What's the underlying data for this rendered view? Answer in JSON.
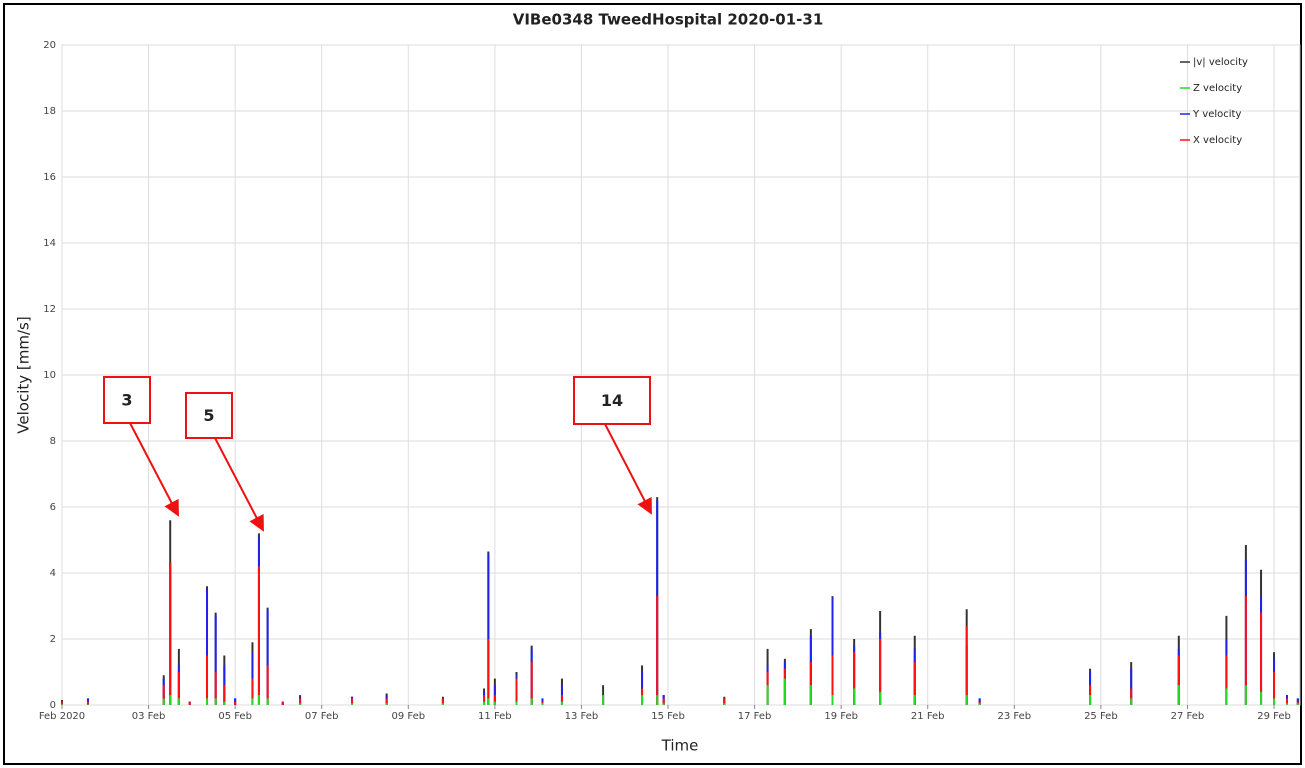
{
  "chart_data": {
    "type": "stem",
    "title": "VIBe0348 TweedHospital 2020-01-31",
    "x_label": "Time",
    "y_label": "Velocity [mm/s]",
    "xlim": [
      1,
      29.6
    ],
    "ylim": [
      0,
      20
    ],
    "yticks": [
      0,
      2,
      4,
      6,
      8,
      10,
      12,
      14,
      16,
      18,
      20
    ],
    "xticks": [
      {
        "value": 1,
        "label": "Feb 2020"
      },
      {
        "value": 3,
        "label": "03 Feb"
      },
      {
        "value": 5,
        "label": "05 Feb"
      },
      {
        "value": 7,
        "label": "07 Feb"
      },
      {
        "value": 9,
        "label": "09 Feb"
      },
      {
        "value": 11,
        "label": "11 Feb"
      },
      {
        "value": 13,
        "label": "13 Feb"
      },
      {
        "value": 15,
        "label": "15 Feb"
      },
      {
        "value": 17,
        "label": "17 Feb"
      },
      {
        "value": 19,
        "label": "19 Feb"
      },
      {
        "value": 21,
        "label": "21 Feb"
      },
      {
        "value": 23,
        "label": "23 Feb"
      },
      {
        "value": 25,
        "label": "25 Feb"
      },
      {
        "value": 27,
        "label": "27 Feb"
      },
      {
        "value": 29,
        "label": "29 Feb"
      }
    ],
    "grid": true,
    "legend": "top-right",
    "x": [
      1.0,
      1.15,
      1.6,
      1.7,
      3.35,
      3.5,
      3.7,
      3.95,
      4.35,
      4.55,
      4.75,
      5.0,
      5.4,
      5.55,
      5.75,
      6.1,
      6.5,
      7.7,
      8.5,
      9.8,
      10.75,
      10.85,
      11.0,
      11.5,
      11.85,
      12.1,
      12.55,
      13.5,
      14.4,
      14.75,
      14.9,
      16.3,
      17.3,
      17.7,
      18.3,
      18.8,
      19.3,
      19.9,
      20.7,
      21.9,
      22.2,
      24.75,
      25.7,
      26.8,
      27.9,
      28.35,
      28.7,
      29.0,
      29.3,
      29.55
    ],
    "series": [
      {
        "name": "|v| velocity",
        "color": "#333333",
        "values": [
          0.15,
          0,
          0.2,
          0,
          0.9,
          5.6,
          1.7,
          0.1,
          3.6,
          2.8,
          1.5,
          0.2,
          1.9,
          5.2,
          2.95,
          0.1,
          0.3,
          0.25,
          0.35,
          0.25,
          0.5,
          4.65,
          0.8,
          1.0,
          1.8,
          0.2,
          0.8,
          0.6,
          1.2,
          6.3,
          0.3,
          0.25,
          1.7,
          1.4,
          2.3,
          3.3,
          2.0,
          2.85,
          2.1,
          2.9,
          0.2,
          1.1,
          1.3,
          2.1,
          2.7,
          4.85,
          4.1,
          1.6,
          0.3,
          0.2
        ]
      },
      {
        "name": "Z velocity",
        "color": "#22dd22",
        "values": [
          0.02,
          0,
          0.02,
          0,
          0.2,
          0.3,
          0.2,
          0,
          0.2,
          0.2,
          0.1,
          0,
          0.2,
          0.3,
          0.2,
          0,
          0.05,
          0.05,
          0.05,
          0.05,
          0.1,
          0.2,
          0.1,
          0.1,
          0.2,
          0.05,
          0.1,
          0.3,
          0.3,
          0.3,
          0.05,
          0.05,
          0.6,
          0.8,
          0.6,
          0.3,
          0.5,
          0.4,
          0.3,
          0.3,
          0.05,
          0.3,
          0.2,
          0.6,
          0.5,
          0.6,
          0.4,
          0.2,
          0.05,
          0.05
        ]
      },
      {
        "name": "Y velocity",
        "color": "#2222ee",
        "values": [
          0.1,
          0,
          0.2,
          0,
          0.8,
          4.3,
          1.2,
          0.1,
          3.5,
          2.7,
          1.2,
          0.2,
          1.6,
          5.1,
          2.9,
          0.1,
          0.25,
          0.25,
          0.3,
          0.2,
          0.4,
          4.6,
          0.6,
          0.9,
          1.7,
          0.2,
          0.6,
          0.3,
          1.0,
          6.2,
          0.3,
          0.2,
          1.2,
          1.3,
          2.1,
          3.25,
          1.8,
          2.2,
          1.7,
          1.8,
          0.2,
          1.0,
          1.1,
          1.7,
          2.0,
          4.4,
          3.3,
          1.4,
          0.3,
          0.2
        ]
      },
      {
        "name": "X velocity",
        "color": "#ff1111",
        "values": [
          0.1,
          0,
          0.1,
          0,
          0.6,
          4.3,
          1.0,
          0.1,
          1.5,
          1.0,
          0.6,
          0.1,
          0.8,
          4.2,
          1.2,
          0.1,
          0.2,
          0.2,
          0.2,
          0.2,
          0.3,
          2.0,
          0.3,
          0.8,
          1.3,
          0.1,
          0.3,
          0.2,
          0.5,
          3.3,
          0.2,
          0.2,
          1.0,
          1.1,
          1.3,
          1.5,
          1.6,
          2.0,
          1.3,
          2.4,
          0.1,
          0.6,
          0.5,
          1.5,
          1.5,
          3.3,
          2.8,
          1.0,
          0.2,
          0.1
        ]
      }
    ],
    "annotations": [
      "3",
      "5",
      "14"
    ]
  }
}
